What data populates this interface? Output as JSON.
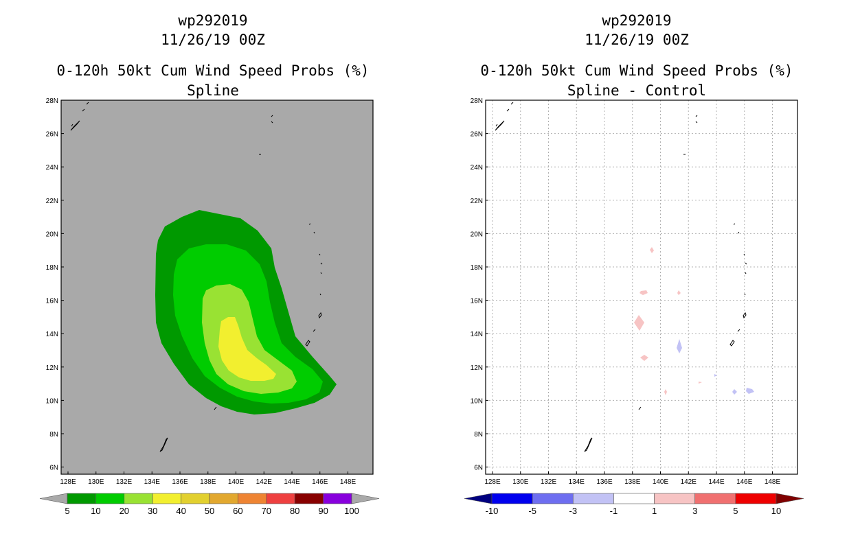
{
  "panels": [
    {
      "title_line1": "wp292019",
      "title_line2": "11/26/19 00Z",
      "title_line3": "0-120h 50kt Cum Wind Speed Probs (%)",
      "title_line4": "Spline",
      "colorbar": {
        "labels": [
          "5",
          "10",
          "20",
          "30",
          "40",
          "50",
          "60",
          "70",
          "80",
          "90",
          "100"
        ],
        "colors": [
          "#009900",
          "#00cc00",
          "#99e233",
          "#f2ef2f",
          "#e2d02f",
          "#e2a82f",
          "#ee8433",
          "#ee4040",
          "#880000",
          "#8800dd"
        ],
        "under_color": "#a9a9a9",
        "over_color": "#a9a9a9"
      }
    },
    {
      "title_line1": "wp292019",
      "title_line2": "11/26/19 00Z",
      "title_line3": "0-120h 50kt Cum Wind Speed Probs (%)",
      "title_line4": "Spline - Control",
      "colorbar": {
        "labels": [
          "-10",
          "-5",
          "-3",
          "-1",
          "1",
          "3",
          "5",
          "10"
        ],
        "colors": [
          "#0000ee",
          "#6e6ef0",
          "#c2c2f5",
          "#ffffff",
          "#f7c4c4",
          "#f07070",
          "#ee0000"
        ],
        "under_color": "#000080",
        "over_color": "#800000"
      }
    }
  ],
  "axes": {
    "lon_labels": [
      "128E",
      "130E",
      "132E",
      "134E",
      "136E",
      "138E",
      "140E",
      "142E",
      "144E",
      "146E",
      "148E"
    ],
    "lat_labels": [
      "28N",
      "26N",
      "24N",
      "22N",
      "20N",
      "18N",
      "16N",
      "14N",
      "12N",
      "10N",
      "8N",
      "6N"
    ]
  },
  "map_data": {
    "lon_range": [
      127,
      149.4
    ],
    "lat_range": [
      5.6,
      28
    ],
    "probability_contours": [
      {
        "level": "5-10%",
        "color": "#009900"
      },
      {
        "level": "10-20%",
        "color": "#00cc00"
      },
      {
        "level": "20-30%",
        "color": "#99e233"
      },
      {
        "level": "30-40%",
        "color": "#f2ef2f"
      }
    ]
  }
}
